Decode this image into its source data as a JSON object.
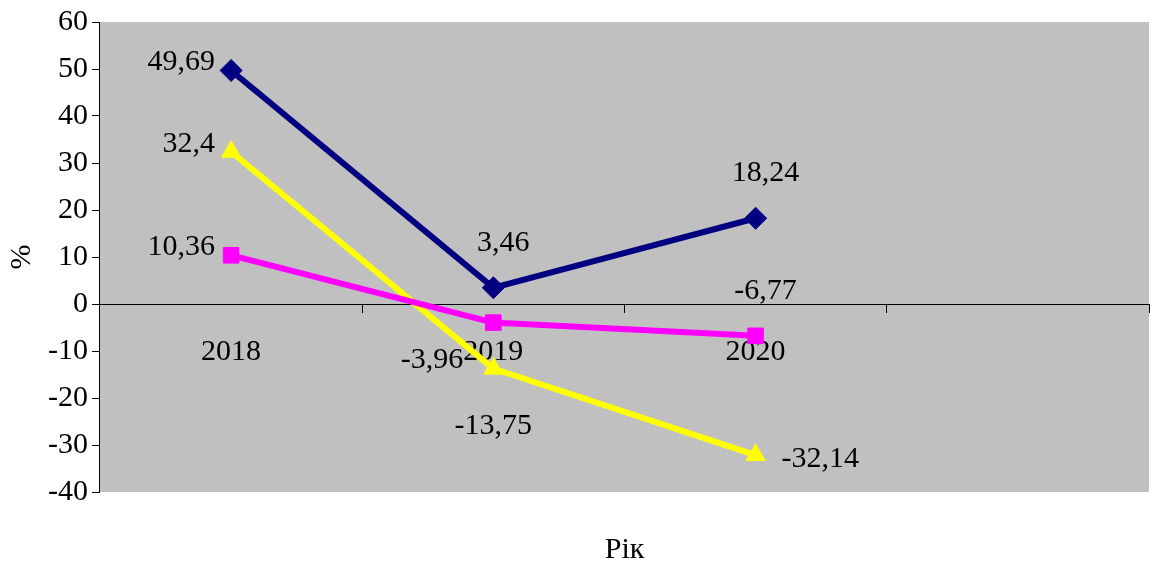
{
  "chart_data": {
    "type": "line",
    "xlabel": "Рік",
    "ylabel": "%",
    "categories": [
      "2018",
      "2019",
      "2020",
      null
    ],
    "series": [
      {
        "color": "#000080",
        "marker": "diamond",
        "values": [
          49.69,
          3.46,
          18.24,
          null
        ],
        "value_labels": [
          "49,69",
          "3,46",
          "18,24",
          null
        ]
      },
      {
        "color": "#ff00ff",
        "marker": "square",
        "values": [
          10.36,
          -3.96,
          -6.77,
          null
        ],
        "value_labels": [
          "10,36",
          "-3,96",
          "-6,77",
          null
        ]
      },
      {
        "color": "#ffff00",
        "marker": "triangle",
        "values": [
          32.4,
          -13.75,
          -32.14,
          null
        ],
        "value_labels": [
          "32,4",
          "-13,75",
          "-32,14",
          null
        ]
      }
    ],
    "ylim": [
      -40,
      60
    ],
    "yticks": [
      -40,
      -30,
      -20,
      -10,
      0,
      10,
      20,
      30,
      40,
      50,
      60
    ],
    "legend": false,
    "grid": false
  }
}
